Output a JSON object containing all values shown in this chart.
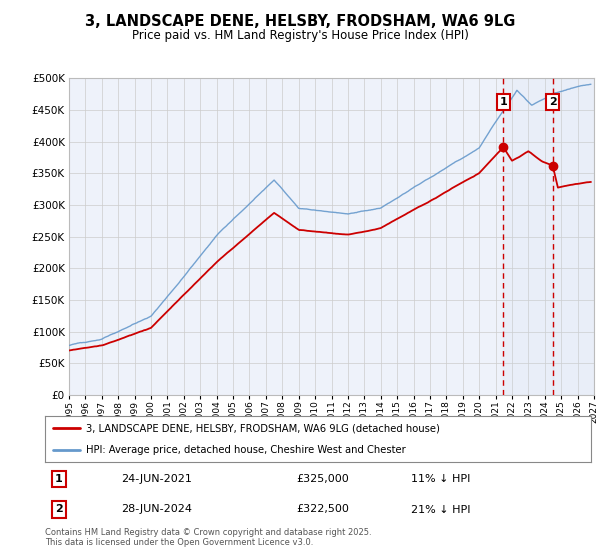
{
  "title": "3, LANDSCAPE DENE, HELSBY, FRODSHAM, WA6 9LG",
  "subtitle": "Price paid vs. HM Land Registry's House Price Index (HPI)",
  "legend_line1": "3, LANDSCAPE DENE, HELSBY, FRODSHAM, WA6 9LG (detached house)",
  "legend_line2": "HPI: Average price, detached house, Cheshire West and Chester",
  "price_color": "#cc0000",
  "hpi_color": "#6699cc",
  "marker1_date_label": "24-JUN-2021",
  "marker1_value": 325000,
  "marker1_pct": "11% ↓ HPI",
  "marker2_date_label": "28-JUN-2024",
  "marker2_value": 322500,
  "marker2_pct": "21% ↓ HPI",
  "marker1_year": 2021.48,
  "marker2_year": 2024.48,
  "ylim_min": 0,
  "ylim_max": 500000,
  "xmin": 1995,
  "xmax": 2027,
  "yticks": [
    0,
    50000,
    100000,
    150000,
    200000,
    250000,
    300000,
    350000,
    400000,
    450000,
    500000
  ],
  "footer": "Contains HM Land Registry data © Crown copyright and database right 2025.\nThis data is licensed under the Open Government Licence v3.0.",
  "background_color": "#eef2fa"
}
